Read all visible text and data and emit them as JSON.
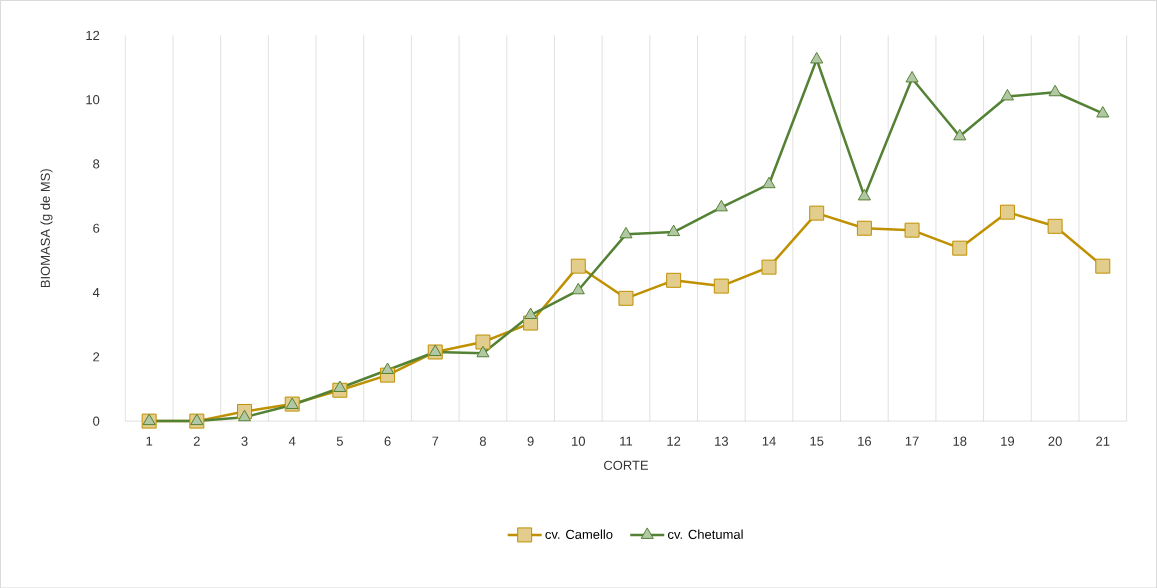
{
  "chart_data": {
    "type": "line",
    "xlabel": "CORTE",
    "ylabel": "BIOMASA (g de MS)",
    "categories": [
      "1",
      "2",
      "3",
      "4",
      "5",
      "6",
      "7",
      "8",
      "9",
      "10",
      "11",
      "12",
      "13",
      "14",
      "15",
      "16",
      "17",
      "18",
      "19",
      "20",
      "21"
    ],
    "series": [
      {
        "name": "cv. Camello",
        "color": "#bf9000",
        "marker": "square",
        "values": [
          0,
          0,
          0.3,
          0.53,
          0.96,
          1.43,
          2.15,
          2.46,
          3.05,
          4.82,
          3.82,
          4.38,
          4.2,
          4.79,
          6.47,
          6.0,
          5.94,
          5.38,
          6.5,
          6.06,
          4.82
        ]
      },
      {
        "name": "cv. Chetumal",
        "color": "#548235",
        "marker": "triangle",
        "values": [
          0,
          0,
          0.12,
          0.5,
          1.03,
          1.59,
          2.15,
          2.11,
          3.3,
          4.07,
          5.81,
          5.88,
          6.65,
          7.37,
          11.25,
          6.99,
          10.66,
          8.86,
          10.1,
          10.23,
          9.57
        ]
      }
    ],
    "ylim": [
      0,
      12
    ],
    "yticks": [
      0,
      2,
      4,
      6,
      8,
      10,
      12
    ],
    "grid": "x",
    "legend": "bottom",
    "line_style": "solid"
  }
}
